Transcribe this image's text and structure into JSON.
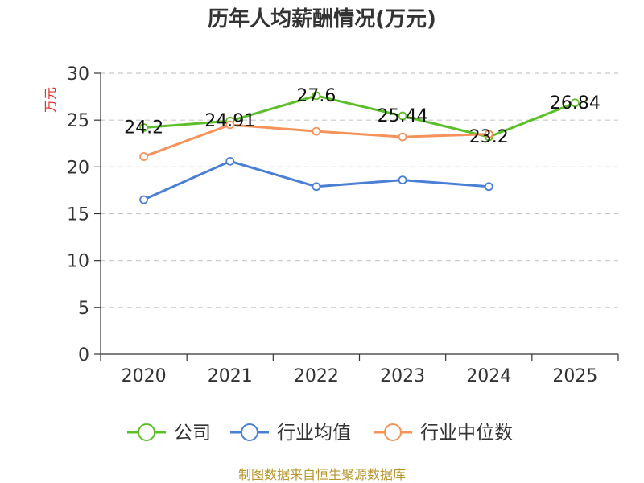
{
  "chart_data": {
    "type": "line",
    "title": "历年人均薪酬情况(万元)",
    "ylabel": "万元",
    "xlabel": "",
    "categories": [
      "2020",
      "2021",
      "2022",
      "2023",
      "2024",
      "2025"
    ],
    "ylim": [
      0,
      30
    ],
    "yticks": [
      0,
      5,
      10,
      15,
      20,
      25,
      30
    ],
    "grid": true,
    "legend_position": "bottom",
    "series": [
      {
        "name": "公司",
        "color": "#5cbf2a",
        "values": [
          24.2,
          24.91,
          27.6,
          25.44,
          23.2,
          26.84
        ],
        "labels": [
          "24.2",
          "24.91",
          "27.6",
          "25.44",
          "23.2",
          "26.84"
        ]
      },
      {
        "name": "行业均值",
        "color": "#4a7fd6",
        "values": [
          16.5,
          20.6,
          17.9,
          18.6,
          17.9,
          null
        ]
      },
      {
        "name": "行业中位数",
        "color": "#f5925a",
        "values": [
          21.1,
          24.5,
          23.8,
          23.2,
          23.5,
          null
        ]
      }
    ]
  },
  "source": "制图数据来自恒生聚源数据库"
}
